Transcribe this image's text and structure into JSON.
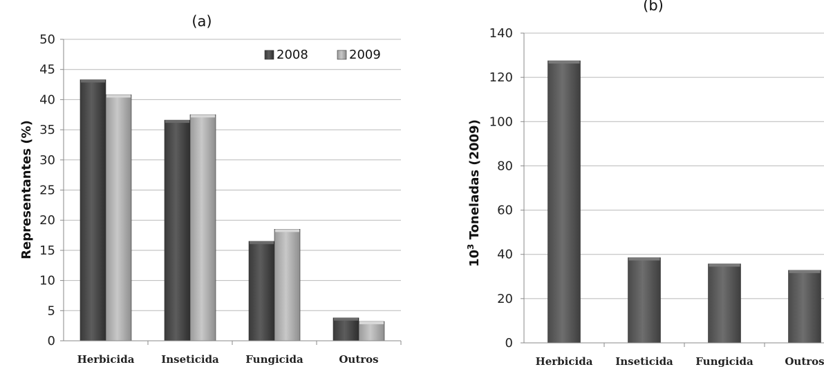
{
  "chart_data": [
    {
      "type": "bar",
      "title": "(a)",
      "xlabel": "",
      "ylabel": "Representantes (%)",
      "ylim": [
        0,
        50
      ],
      "yticks": [
        0,
        5,
        10,
        15,
        20,
        25,
        30,
        35,
        40,
        45,
        50
      ],
      "categories": [
        "Herbicida",
        "Inseticida",
        "Fungicida",
        "Outros"
      ],
      "series": [
        {
          "name": "2008",
          "color": "#4a4a4a",
          "values": [
            43.3,
            36.6,
            16.5,
            3.8
          ]
        },
        {
          "name": "2009",
          "color": "#b3b3b3",
          "values": [
            40.8,
            37.5,
            18.5,
            3.2
          ]
        }
      ],
      "legend": "top-right",
      "grid": true
    },
    {
      "type": "bar",
      "title": "(b)",
      "xlabel": "",
      "ylabel_super": "3",
      "ylabel_prefix": "10",
      "ylabel_rest": " Toneladas (2009)",
      "ylim": [
        0,
        140
      ],
      "yticks": [
        0,
        20,
        40,
        60,
        80,
        100,
        120,
        140
      ],
      "categories": [
        "Herbicida",
        "Inseticida",
        "Fungicida",
        "Outros"
      ],
      "series": [
        {
          "color": "#5e5e5e",
          "values": [
            127.5,
            38.5,
            35.7,
            32.8
          ]
        }
      ],
      "grid": true
    }
  ]
}
